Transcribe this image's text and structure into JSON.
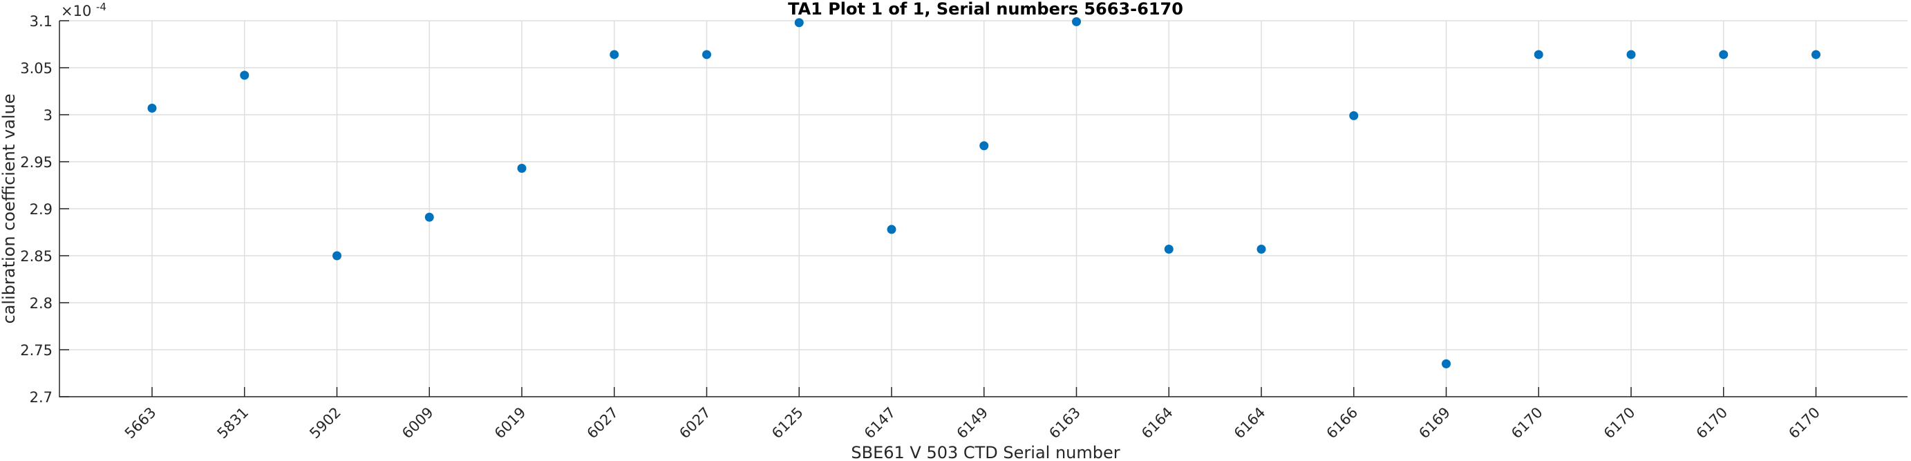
{
  "chart_data": {
    "type": "scatter",
    "title": "TA1 Plot 1 of 1, Serial numbers 5663-6170",
    "xlabel": "SBE61 V 503 CTD Serial number",
    "ylabel": "calibration coefficient value",
    "y_exponent_base": "×10",
    "y_exponent": "-4",
    "ylim": [
      2.7,
      3.1
    ],
    "yticks": [
      2.7,
      2.75,
      2.8,
      2.85,
      2.9,
      2.95,
      3.0,
      3.05,
      3.1
    ],
    "ytick_labels": [
      "2.7",
      "2.75",
      "2.8",
      "2.85",
      "2.9",
      "2.95",
      "3",
      "3.05",
      "3.1"
    ],
    "categories": [
      "5663",
      "5831",
      "5902",
      "6009",
      "6019",
      "6027",
      "6027",
      "6125",
      "6147",
      "6149",
      "6163",
      "6164",
      "6164",
      "6166",
      "6169",
      "6170",
      "6170",
      "6170",
      "6170"
    ],
    "values": [
      3.007,
      3.042,
      2.85,
      2.891,
      2.943,
      3.064,
      3.064,
      3.098,
      2.878,
      2.967,
      3.099,
      2.857,
      2.857,
      2.999,
      2.735,
      3.064,
      3.064,
      3.064,
      3.064
    ],
    "grid": true,
    "marker_color": "#0072BD"
  }
}
